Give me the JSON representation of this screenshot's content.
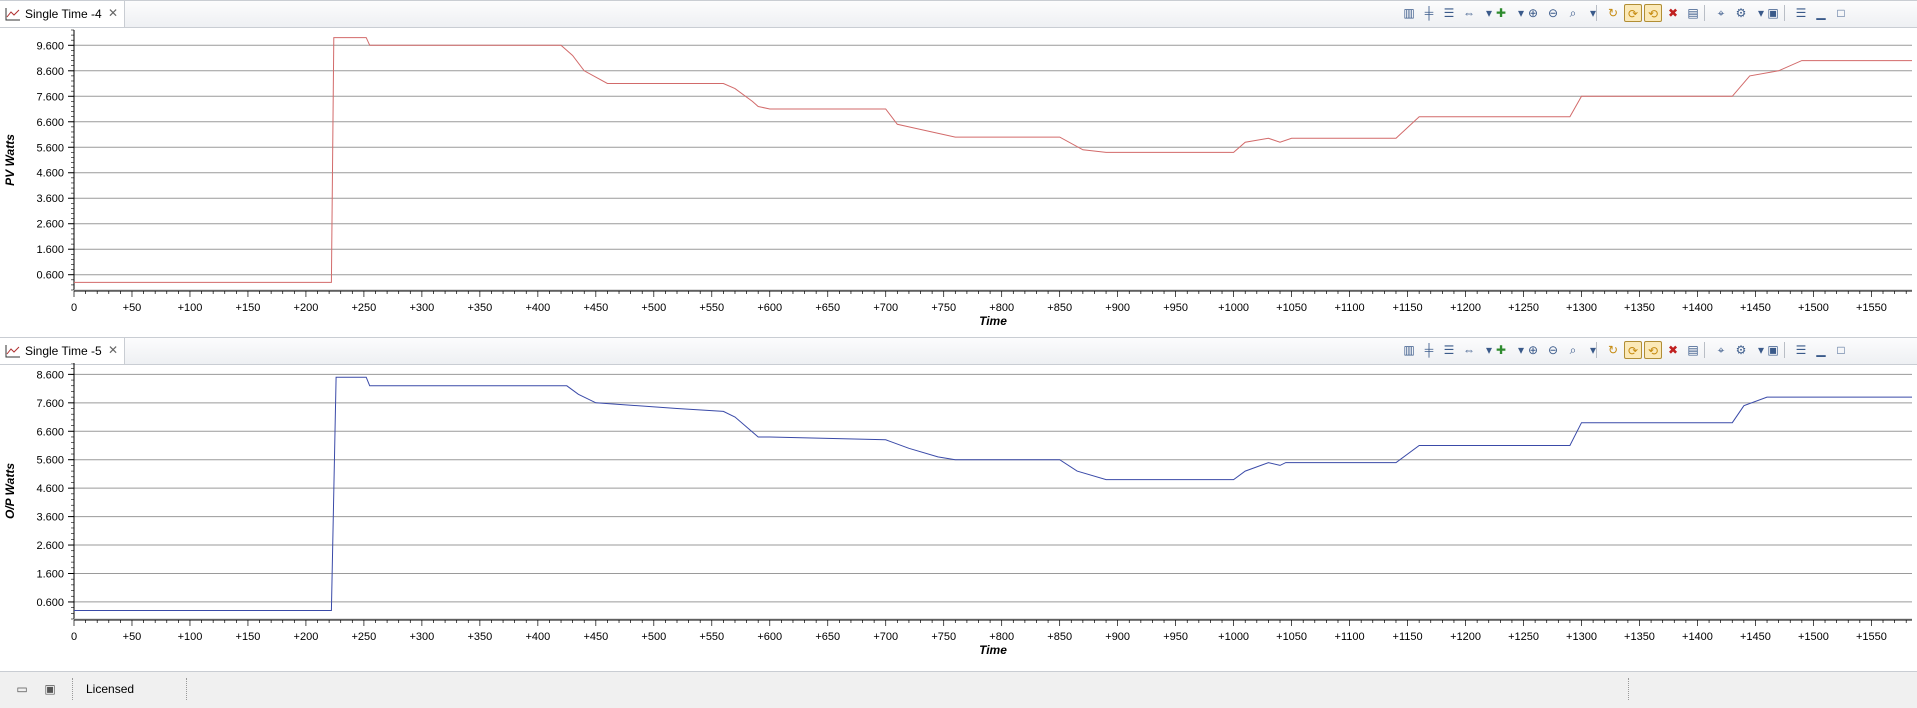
{
  "panels": [
    {
      "tab_title": "Single Time -4",
      "close_icon": "✕",
      "ylabel": "PV Watts",
      "xlabel": "Time",
      "line_color": "#d26a6a",
      "yticks": [
        "9.600",
        "8.600",
        "7.600",
        "6.600",
        "5.600",
        "4.600",
        "3.600",
        "2.600",
        "1.600",
        "0.600"
      ],
      "xticks": [
        "0",
        "+50",
        "+100",
        "+150",
        "+200",
        "+250",
        "+300",
        "+350",
        "+400",
        "+450",
        "+500",
        "+550",
        "+600",
        "+650",
        "+700",
        "+750",
        "+800",
        "+850",
        "+900",
        "+950",
        "+1000",
        "+1050",
        "+1100",
        "+1150",
        "+1200",
        "+1250",
        "+1300",
        "+1350",
        "+1400",
        "+1450",
        "+1500",
        "+1550"
      ]
    },
    {
      "tab_title": "Single Time -5",
      "close_icon": "✕",
      "ylabel": "O/P Watts",
      "xlabel": "Time",
      "line_color": "#3a4aa8",
      "yticks": [
        "8.600",
        "7.600",
        "6.600",
        "5.600",
        "4.600",
        "3.600",
        "2.600",
        "1.600",
        "0.600"
      ],
      "xticks": [
        "0",
        "+50",
        "+100",
        "+150",
        "+200",
        "+250",
        "+300",
        "+350",
        "+400",
        "+450",
        "+500",
        "+550",
        "+600",
        "+650",
        "+700",
        "+750",
        "+800",
        "+850",
        "+900",
        "+950",
        "+1000",
        "+1050",
        "+1100",
        "+1150",
        "+1200",
        "+1250",
        "+1300",
        "+1350",
        "+1400",
        "+1450",
        "+1500",
        "+1550"
      ]
    }
  ],
  "status": {
    "licensed": "Licensed"
  },
  "chart_data": [
    {
      "type": "line",
      "title": "Single Time -4",
      "xlabel": "Time",
      "ylabel": "PV Watts",
      "xlim": [
        0,
        1585
      ],
      "ylim": [
        0.0,
        10.2
      ],
      "grid": true,
      "series": [
        {
          "x": [
            0,
            222,
            224,
            252,
            255,
            420,
            430,
            440,
            460,
            560,
            570,
            585,
            590,
            600,
            700,
            710,
            740,
            760,
            850,
            870,
            890,
            1000,
            1010,
            1030,
            1040,
            1050,
            1140,
            1160,
            1290,
            1300,
            1430,
            1445,
            1470,
            1490,
            1585
          ],
          "y": [
            0.3,
            0.3,
            9.9,
            9.9,
            9.6,
            9.6,
            9.2,
            8.6,
            8.1,
            8.1,
            7.9,
            7.4,
            7.2,
            7.1,
            7.1,
            6.5,
            6.2,
            6.0,
            6.0,
            5.5,
            5.4,
            5.4,
            5.8,
            5.95,
            5.8,
            5.95,
            5.95,
            6.8,
            6.8,
            7.6,
            7.6,
            8.4,
            8.6,
            9.0,
            9.0
          ]
        }
      ]
    },
    {
      "type": "line",
      "title": "Single Time -5",
      "xlabel": "Time",
      "ylabel": "O/P Watts",
      "xlim": [
        0,
        1585
      ],
      "ylim": [
        0.0,
        9.0
      ],
      "grid": true,
      "series": [
        {
          "x": [
            0,
            222,
            226,
            252,
            255,
            425,
            435,
            450,
            520,
            560,
            570,
            590,
            600,
            700,
            720,
            745,
            760,
            850,
            865,
            890,
            1000,
            1010,
            1030,
            1040,
            1045,
            1140,
            1160,
            1290,
            1300,
            1430,
            1440,
            1460,
            1500,
            1585
          ],
          "y": [
            0.3,
            0.3,
            8.5,
            8.5,
            8.2,
            8.2,
            7.9,
            7.6,
            7.4,
            7.3,
            7.1,
            6.4,
            6.4,
            6.3,
            6.0,
            5.7,
            5.6,
            5.6,
            5.2,
            4.9,
            4.9,
            5.2,
            5.5,
            5.4,
            5.5,
            5.5,
            6.1,
            6.1,
            6.9,
            6.9,
            7.5,
            7.8,
            7.8,
            7.8
          ]
        }
      ]
    }
  ]
}
